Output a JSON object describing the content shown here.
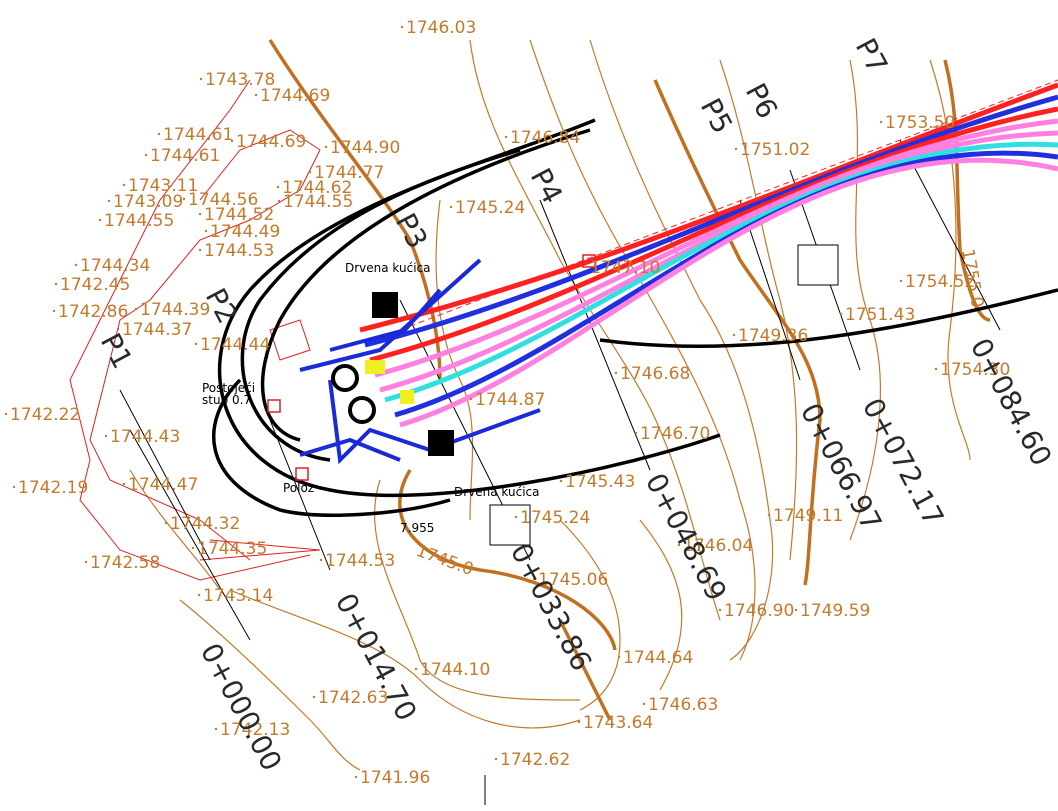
{
  "elevations": [
    "1746.03",
    "1743.78",
    "1744.69",
    "1744.61",
    "1744.69",
    "1744.90",
    "1744.61",
    "1744.77",
    "1743.11",
    "1744.62",
    "1743.09",
    "1744.56",
    "1744.55",
    "1744.52",
    "1744.55",
    "1744.49",
    "1744.53",
    "1744.34",
    "1742.45",
    "1742.86",
    "1744.39",
    "1744.37",
    "1744.44",
    "1742.22",
    "1744.43",
    "1742.19",
    "1744.47",
    "1744.32",
    "1744.35",
    "1742.58",
    "1744.53",
    "1743.14",
    "1746.84",
    "1745.24",
    "1751.02",
    "1753.50",
    "1754.52",
    "1751.43",
    "1749.36",
    "1754.30",
    "1746.68",
    "1744.87",
    "1746.70",
    "1745.43",
    "1745.24",
    "1746.04",
    "1749.11",
    "1745.06",
    "1746.90",
    "1749.59",
    "1744.64",
    "1744.10",
    "1746.63",
    "1742.63",
    "1743.64",
    "1742.13",
    "1742.62",
    "1741.96",
    "1747.10"
  ],
  "stations": [
    "0+000.00",
    "0+014.70",
    "0+033.86",
    "0+048.69",
    "0+066.97",
    "0+072.17",
    "0+084.60"
  ],
  "profiles": [
    "P1",
    "P2",
    "P3",
    "P4",
    "P5",
    "P6",
    "P7"
  ],
  "contour_labels": [
    "1745.0",
    "1755.0"
  ],
  "notes": {
    "house_1": "Drvena kućica",
    "house_2": "Drvena kućica",
    "pole_1": "Postojeći",
    "pole_2": "stub 0.7",
    "polaz": "Poloz",
    "dim": "7.955"
  }
}
